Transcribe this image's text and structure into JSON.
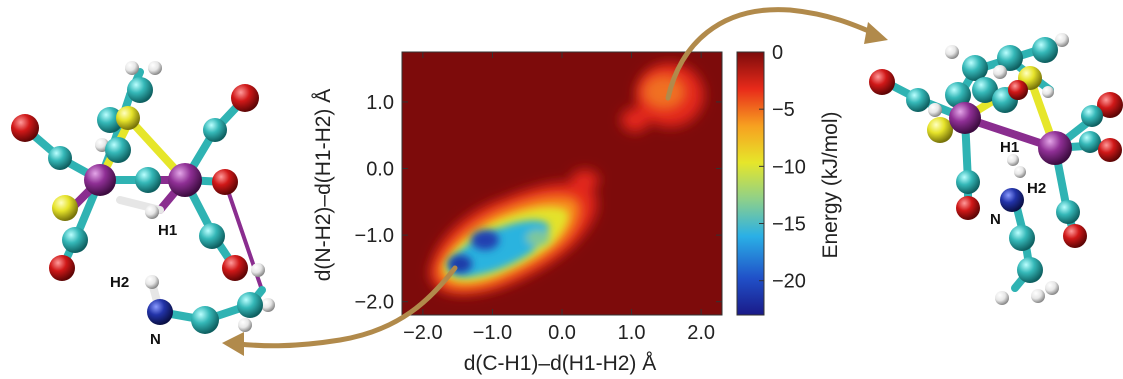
{
  "chart_data": {
    "type": "heatmap",
    "xlabel": "d(C-H1)–d(H1-H2) Å",
    "ylabel": "d(N-H2)–d(H1-H2) Å",
    "colorbar_label": "Energy (kJ/mol)",
    "xlim": [
      -2.3,
      2.3
    ],
    "ylim": [
      -2.2,
      1.75
    ],
    "x_ticks": [
      "−2.0",
      "−1.0",
      "0.0",
      "1.0",
      "2.0"
    ],
    "x_tick_values": [
      -2.0,
      -1.0,
      0.0,
      1.0,
      2.0
    ],
    "y_ticks": [
      "−2.0",
      "−1.0",
      "0.0",
      "1.0"
    ],
    "y_tick_values": [
      -2.0,
      -1.0,
      0.0,
      1.0
    ],
    "colorbar_ticks": [
      "0",
      "−5",
      "−10",
      "−15",
      "−20"
    ],
    "colorbar_tick_values": [
      0,
      -5,
      -10,
      -15,
      -20
    ],
    "colorbar_range": [
      -23,
      0
    ],
    "background_value": 0,
    "basins": [
      {
        "x": -1.35,
        "y": -1.45,
        "min_energy": -22
      },
      {
        "x": -1.05,
        "y": -1.05,
        "min_energy": -20
      },
      {
        "x": -0.6,
        "y": -1.1,
        "min_energy": -15
      },
      {
        "x": -0.3,
        "y": -0.7,
        "min_energy": -12
      },
      {
        "x": 0.1,
        "y": -0.65,
        "min_energy": -10
      },
      {
        "x": 1.6,
        "y": 1.05,
        "min_energy": -6
      }
    ]
  },
  "structures": {
    "left": {
      "labels": [
        "H1",
        "H2",
        "N"
      ]
    },
    "right": {
      "labels": [
        "H1",
        "H2",
        "N"
      ]
    }
  },
  "colors": {
    "arrow": "#b18a4b",
    "carbon": "#2fb3b3",
    "oxygen": "#d41414",
    "iron": "#8a2d8f",
    "sulfur": "#e6e62a",
    "hydrogen": "#f2f2f2",
    "nitrogen": "#1e2a9a"
  }
}
